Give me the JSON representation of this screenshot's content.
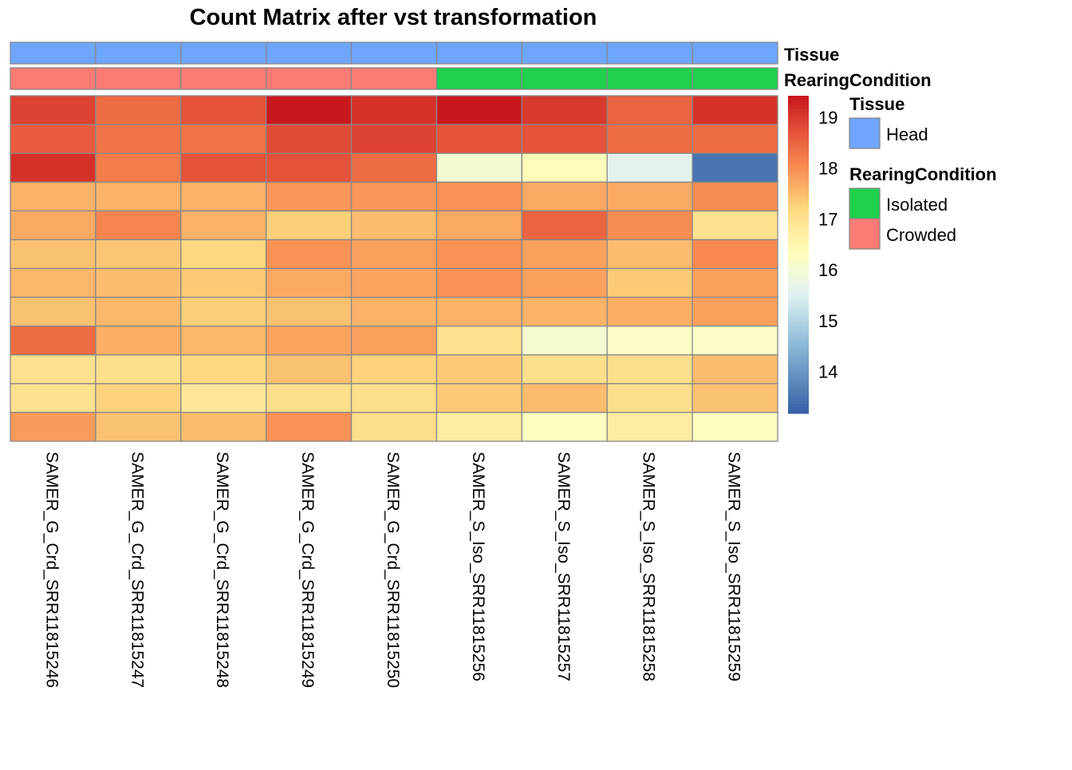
{
  "chart_data": {
    "type": "heatmap",
    "title": "Count Matrix after vst transformation",
    "columns": [
      "SAMER_G_Crd_SRR11815246",
      "SAMER_G_Crd_SRR11815247",
      "SAMER_G_Crd_SRR11815248",
      "SAMER_G_Crd_SRR11815249",
      "SAMER_G_Crd_SRR11815250",
      "SAMER_S_Iso_SRR11815256",
      "SAMER_S_Iso_SRR11815257",
      "SAMER_S_Iso_SRR11815258",
      "SAMER_S_Iso_SRR11815259"
    ],
    "values": [
      [
        18.9,
        18.4,
        18.7,
        19.4,
        19.1,
        19.4,
        19.0,
        18.5,
        19.1
      ],
      [
        18.6,
        18.3,
        18.3,
        18.8,
        18.9,
        18.7,
        18.7,
        18.4,
        18.4
      ],
      [
        19.1,
        18.2,
        18.7,
        18.7,
        18.4,
        16.0,
        16.4,
        15.6,
        13.5
      ],
      [
        17.6,
        17.6,
        17.6,
        17.9,
        17.9,
        17.95,
        17.7,
        17.7,
        18.0
      ],
      [
        17.7,
        18.1,
        17.6,
        17.3,
        17.5,
        17.7,
        18.5,
        18.0,
        17.0
      ],
      [
        17.45,
        17.4,
        17.2,
        17.95,
        17.8,
        17.95,
        17.8,
        17.5,
        18.05
      ],
      [
        17.55,
        17.5,
        17.35,
        17.7,
        17.75,
        17.95,
        17.8,
        17.35,
        17.8
      ],
      [
        17.45,
        17.55,
        17.3,
        17.45,
        17.6,
        17.6,
        17.6,
        17.65,
        17.8
      ],
      [
        18.4,
        17.65,
        17.55,
        17.75,
        17.8,
        17.0,
        16.05,
        16.2,
        16.2
      ],
      [
        17.0,
        17.05,
        17.2,
        17.45,
        17.25,
        17.35,
        17.05,
        17.05,
        17.5
      ],
      [
        17.0,
        17.25,
        16.85,
        17.05,
        17.05,
        17.35,
        17.5,
        17.05,
        17.45
      ],
      [
        17.85,
        17.45,
        17.5,
        17.95,
        17.05,
        16.75,
        16.25,
        16.75,
        16.25
      ]
    ],
    "color_range": [
      13.18,
      19.42
    ],
    "colorbar_ticks": [
      19,
      18,
      17,
      16,
      15,
      14
    ],
    "color_stops": [
      {
        "value": 13.18,
        "color": "#3560a6"
      },
      {
        "value": 14.5,
        "color": "#8ab8d6"
      },
      {
        "value": 15.5,
        "color": "#dff1f2"
      },
      {
        "value": 16.3,
        "color": "#ffffbf"
      },
      {
        "value": 17.2,
        "color": "#fdd880"
      },
      {
        "value": 18.0,
        "color": "#f88d52"
      },
      {
        "value": 18.7,
        "color": "#e5533a"
      },
      {
        "value": 19.42,
        "color": "#c8161c"
      }
    ],
    "annotations": [
      {
        "name": "Tissue",
        "values": [
          "Head",
          "Head",
          "Head",
          "Head",
          "Head",
          "Head",
          "Head",
          "Head",
          "Head"
        ]
      },
      {
        "name": "RearingCondition",
        "values": [
          "Crowded",
          "Crowded",
          "Crowded",
          "Crowded",
          "Crowded",
          "Isolated",
          "Isolated",
          "Isolated",
          "Isolated"
        ]
      }
    ],
    "legend": [
      {
        "title": "Tissue",
        "items": [
          {
            "label": "Head",
            "color": "#6ea6ff"
          }
        ]
      },
      {
        "title": "RearingCondition",
        "items": [
          {
            "label": "Isolated",
            "color": "#1ed04c"
          },
          {
            "label": "Crowded",
            "color": "#fb7b74"
          }
        ]
      }
    ],
    "legend_placement": "right",
    "cell_border_color": "#888888"
  }
}
